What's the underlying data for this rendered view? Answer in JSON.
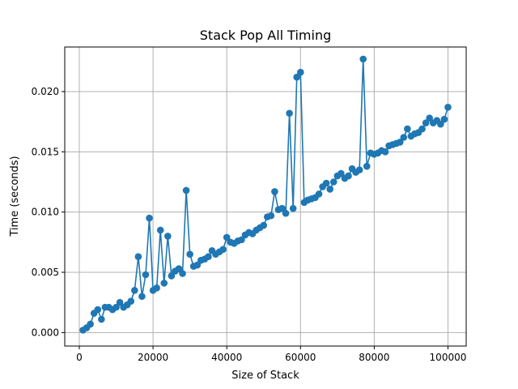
{
  "chart_data": {
    "type": "line",
    "title": "Stack Pop All Timing",
    "xlabel": "Size of Stack",
    "ylabel": "Time (seconds)",
    "xlim": [
      -3950,
      104950
    ],
    "ylim": [
      -0.00112,
      0.0237
    ],
    "xticks": [
      0,
      20000,
      40000,
      60000,
      80000,
      100000
    ],
    "xtick_labels": [
      "0",
      "20000",
      "40000",
      "60000",
      "80000",
      "100000"
    ],
    "yticks": [
      0,
      0.005,
      0.01,
      0.015,
      0.02
    ],
    "ytick_labels": [
      "0.000",
      "0.005",
      "0.010",
      "0.015",
      "0.020"
    ],
    "grid": true,
    "marker": "circle",
    "color": "#1f77b4",
    "series": [
      {
        "x": [
          1000,
          2000,
          3000,
          4000,
          5000,
          6000,
          7000,
          8000,
          9000,
          10000,
          11000,
          12000,
          13000,
          14000,
          15000,
          16000,
          17000,
          18000,
          19000,
          20000,
          21000,
          22000,
          23000,
          24000,
          25000,
          26000,
          27000,
          28000,
          29000,
          30000,
          31000,
          32000,
          33000,
          34000,
          35000,
          36000,
          37000,
          38000,
          39000,
          40000,
          41000,
          42000,
          43000,
          44000,
          45000,
          46000,
          47000,
          48000,
          49000,
          50000,
          51000,
          52000,
          53000,
          54000,
          55000,
          56000,
          57000,
          58000,
          59000,
          60000,
          61000,
          62000,
          63000,
          64000,
          65000,
          66000,
          67000,
          68000,
          69000,
          70000,
          71000,
          72000,
          73000,
          74000,
          75000,
          76000,
          77000,
          78000,
          79000,
          80000,
          81000,
          82000,
          83000,
          84000,
          85000,
          86000,
          87000,
          88000,
          89000,
          90000,
          91000,
          92000,
          93000,
          94000,
          95000,
          96000,
          97000,
          98000,
          99000,
          100000
        ],
        "values": [
          0.0002,
          0.0004,
          0.0007,
          0.0016,
          0.0019,
          0.0011,
          0.0021,
          0.0021,
          0.0019,
          0.0021,
          0.0025,
          0.0021,
          0.0023,
          0.0026,
          0.0035,
          0.0063,
          0.003,
          0.0048,
          0.0095,
          0.0035,
          0.0037,
          0.0085,
          0.0041,
          0.008,
          0.0047,
          0.0051,
          0.0053,
          0.0049,
          0.0118,
          0.0065,
          0.0055,
          0.0056,
          0.006,
          0.0061,
          0.0063,
          0.0068,
          0.0065,
          0.0067,
          0.0069,
          0.0079,
          0.0075,
          0.0074,
          0.0076,
          0.0077,
          0.0081,
          0.0083,
          0.0082,
          0.0085,
          0.0087,
          0.0089,
          0.0096,
          0.0097,
          0.0117,
          0.0102,
          0.0103,
          0.0099,
          0.0182,
          0.0103,
          0.0212,
          0.0216,
          0.0108,
          0.011,
          0.0111,
          0.0112,
          0.0115,
          0.0121,
          0.0124,
          0.0119,
          0.0125,
          0.013,
          0.0132,
          0.0128,
          0.013,
          0.0136,
          0.0133,
          0.0135,
          0.0227,
          0.0138,
          0.0149,
          0.0148,
          0.0149,
          0.0151,
          0.015,
          0.0155,
          0.0156,
          0.0157,
          0.0158,
          0.0162,
          0.0169,
          0.0163,
          0.0165,
          0.0166,
          0.0169,
          0.0174,
          0.0178,
          0.0174,
          0.0176,
          0.0173,
          0.0177,
          0.0187
        ]
      }
    ]
  }
}
